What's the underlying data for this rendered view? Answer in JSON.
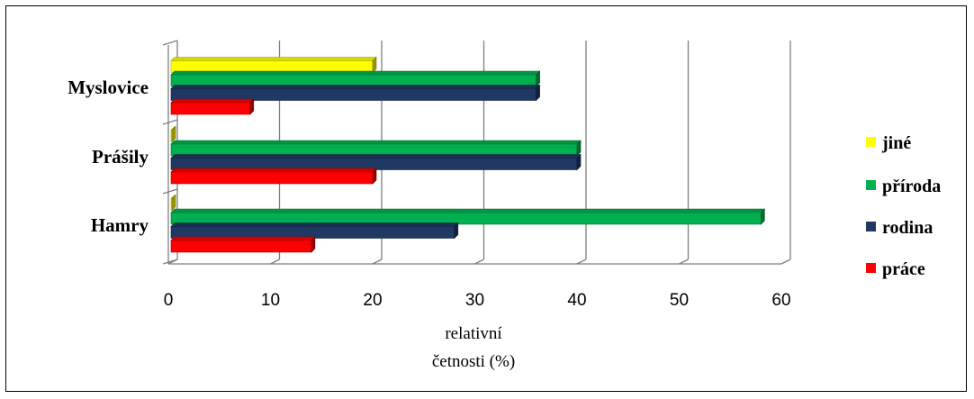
{
  "chart_data": {
    "type": "bar",
    "orientation": "horizontal",
    "categories": [
      "Myslovice",
      "Prášily",
      "Hamry"
    ],
    "series": [
      {
        "name": "jiné",
        "color": "#ffff00",
        "values": [
          20,
          0,
          0
        ]
      },
      {
        "name": "příroda",
        "color": "#00b050",
        "values": [
          36,
          40,
          58
        ]
      },
      {
        "name": "rodina",
        "color": "#1f3864",
        "values": [
          36,
          40,
          28
        ]
      },
      {
        "name": "práce",
        "color": "#ff0000",
        "values": [
          8,
          20,
          14
        ]
      }
    ],
    "legend_order": [
      "jiné",
      "příroda",
      "rodina",
      "práce"
    ],
    "xlim": [
      0,
      60
    ],
    "xticks": [
      "0",
      "10",
      "20",
      "30",
      "40",
      "50",
      "60"
    ],
    "xlabel_line1": "relativní",
    "xlabel_line2": "četnosti (%)",
    "grid": true,
    "legend_position": "right",
    "style": "3d"
  }
}
